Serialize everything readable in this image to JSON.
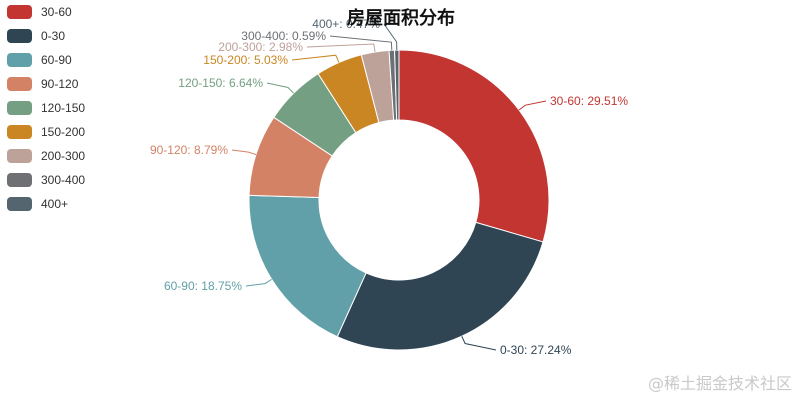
{
  "chart_data": {
    "type": "pie",
    "title": "房屋面积分布",
    "donut": true,
    "legend_position": "top-left",
    "categories": [
      "30-60",
      "0-30",
      "60-90",
      "90-120",
      "120-150",
      "150-200",
      "200-300",
      "300-400",
      "400+"
    ],
    "values": [
      29.51,
      27.24,
      18.75,
      8.79,
      6.64,
      5.03,
      2.98,
      0.59,
      0.47
    ],
    "value_unit": "%",
    "data_labels": [
      "30-60: 29.51%",
      "0-30: 27.24%",
      "60-90: 18.75%",
      "90-120: 8.79%",
      "120-150: 6.64%",
      "150-200: 5.03%",
      "200-300: 2.98%",
      "300-400: 0.59%",
      "400+: 0.47%"
    ],
    "colors": [
      "#c23531",
      "#2f4554",
      "#61a0a8",
      "#d48265",
      "#749f83",
      "#ca8622",
      "#bda29a",
      "#6e7074",
      "#546570"
    ]
  },
  "watermark": "@稀土掘金技术社区"
}
